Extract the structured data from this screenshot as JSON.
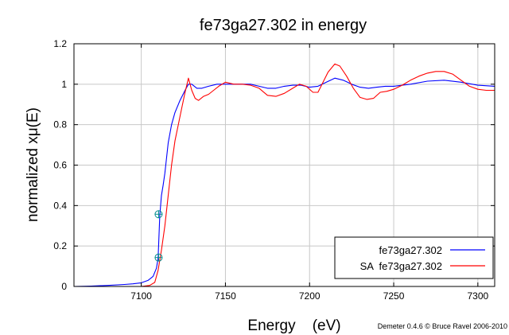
{
  "chart_data": {
    "type": "line",
    "title": "fe73ga27.302 in energy",
    "xlabel": "Energy    (eV)",
    "ylabel": "normalized xμ(E)",
    "xlim": [
      7060,
      7310
    ],
    "ylim": [
      0,
      1.2
    ],
    "xticks": [
      7100,
      7150,
      7200,
      7250,
      7300
    ],
    "yticks": [
      0,
      0.2,
      0.4,
      0.6,
      0.8,
      1,
      1.2
    ],
    "xtick_labels": [
      "7100",
      "7150",
      "7200",
      "7250",
      "7300"
    ],
    "ytick_labels": [
      "0",
      "0.2",
      "0.4",
      "0.6",
      "0.8",
      "1",
      "1.2"
    ],
    "grid": true,
    "legend_position": "bottom-right",
    "credit": "Demeter 0.4.6 © Bruce Ravel 2006-2010",
    "series": [
      {
        "name": "fe73ga27.302",
        "legend_label": "fe73ga27.302",
        "color": "#0000ff",
        "points": [
          [
            7060,
            0.0
          ],
          [
            7070,
            0.002
          ],
          [
            7080,
            0.005
          ],
          [
            7090,
            0.01
          ],
          [
            7095,
            0.013
          ],
          [
            7100,
            0.018
          ],
          [
            7104,
            0.03
          ],
          [
            7107,
            0.05
          ],
          [
            7109,
            0.09
          ],
          [
            7110,
            0.14
          ],
          [
            7111,
            0.35
          ],
          [
            7112,
            0.45
          ],
          [
            7113,
            0.5
          ],
          [
            7114,
            0.56
          ],
          [
            7116,
            0.71
          ],
          [
            7118,
            0.8
          ],
          [
            7120,
            0.86
          ],
          [
            7123,
            0.92
          ],
          [
            7126,
            0.97
          ],
          [
            7128,
            1.0
          ],
          [
            7130,
            1.0
          ],
          [
            7133,
            0.98
          ],
          [
            7136,
            0.98
          ],
          [
            7140,
            0.99
          ],
          [
            7145,
            1.0
          ],
          [
            7150,
            1.0
          ],
          [
            7155,
            1.0
          ],
          [
            7160,
            1.0
          ],
          [
            7165,
            1.0
          ],
          [
            7170,
            0.99
          ],
          [
            7175,
            0.98
          ],
          [
            7180,
            0.98
          ],
          [
            7185,
            0.99
          ],
          [
            7190,
            0.995
          ],
          [
            7195,
            0.995
          ],
          [
            7200,
            0.985
          ],
          [
            7205,
            0.99
          ],
          [
            7210,
            1.01
          ],
          [
            7215,
            1.03
          ],
          [
            7220,
            1.02
          ],
          [
            7225,
            1.0
          ],
          [
            7230,
            0.985
          ],
          [
            7235,
            0.98
          ],
          [
            7240,
            0.985
          ],
          [
            7245,
            0.99
          ],
          [
            7250,
            0.99
          ],
          [
            7260,
            1.0
          ],
          [
            7270,
            1.015
          ],
          [
            7280,
            1.02
          ],
          [
            7290,
            1.01
          ],
          [
            7300,
            0.995
          ],
          [
            7310,
            0.99
          ]
        ]
      },
      {
        "name": "SA  fe73ga27.302",
        "legend_label": "SA  fe73ga27.302",
        "color": "#ff0000",
        "points": [
          [
            7060,
            0.0
          ],
          [
            7080,
            0.0
          ],
          [
            7100,
            0.0
          ],
          [
            7105,
            0.005
          ],
          [
            7108,
            0.02
          ],
          [
            7110,
            0.08
          ],
          [
            7112,
            0.18
          ],
          [
            7114,
            0.3
          ],
          [
            7116,
            0.45
          ],
          [
            7118,
            0.6
          ],
          [
            7120,
            0.72
          ],
          [
            7122,
            0.8
          ],
          [
            7124,
            0.88
          ],
          [
            7126,
            0.96
          ],
          [
            7128,
            1.03
          ],
          [
            7130,
            0.97
          ],
          [
            7132,
            0.93
          ],
          [
            7134,
            0.92
          ],
          [
            7137,
            0.94
          ],
          [
            7140,
            0.95
          ],
          [
            7143,
            0.97
          ],
          [
            7146,
            0.99
          ],
          [
            7150,
            1.01
          ],
          [
            7155,
            1.0
          ],
          [
            7160,
            1.0
          ],
          [
            7165,
            0.995
          ],
          [
            7170,
            0.98
          ],
          [
            7175,
            0.945
          ],
          [
            7180,
            0.94
          ],
          [
            7185,
            0.955
          ],
          [
            7190,
            0.98
          ],
          [
            7194,
            1.0
          ],
          [
            7198,
            0.99
          ],
          [
            7202,
            0.96
          ],
          [
            7205,
            0.96
          ],
          [
            7208,
            1.01
          ],
          [
            7211,
            1.06
          ],
          [
            7215,
            1.1
          ],
          [
            7218,
            1.09
          ],
          [
            7222,
            1.04
          ],
          [
            7226,
            0.98
          ],
          [
            7230,
            0.935
          ],
          [
            7234,
            0.925
          ],
          [
            7238,
            0.93
          ],
          [
            7242,
            0.96
          ],
          [
            7246,
            0.965
          ],
          [
            7250,
            0.975
          ],
          [
            7255,
            0.995
          ],
          [
            7260,
            1.02
          ],
          [
            7265,
            1.04
          ],
          [
            7270,
            1.055
          ],
          [
            7275,
            1.063
          ],
          [
            7280,
            1.063
          ],
          [
            7285,
            1.05
          ],
          [
            7290,
            1.02
          ],
          [
            7295,
            0.99
          ],
          [
            7300,
            0.975
          ],
          [
            7305,
            0.97
          ],
          [
            7310,
            0.97
          ]
        ]
      }
    ],
    "markers": [
      {
        "x": 7110.3,
        "y": 0.357
      },
      {
        "x": 7110.3,
        "y": 0.143
      }
    ]
  }
}
